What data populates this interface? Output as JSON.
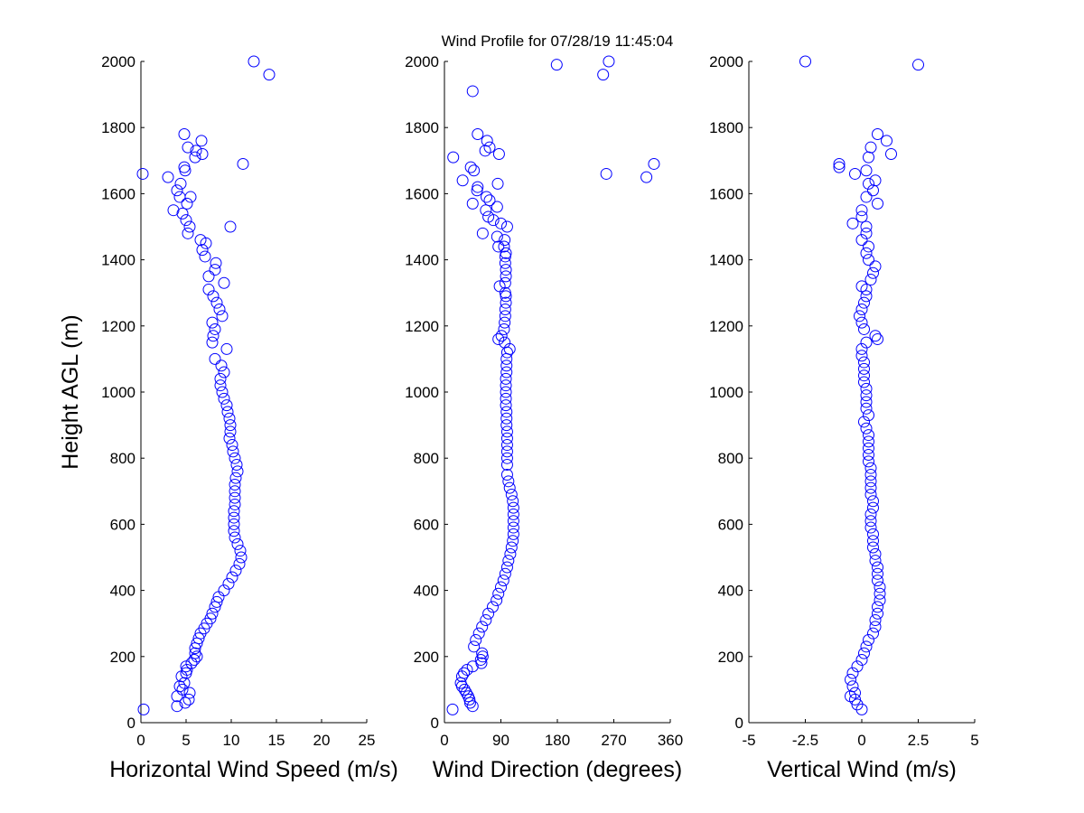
{
  "figure": {
    "title": "Wind Profile for  07/28/19 11:45:04",
    "marker_color": "#0000ff"
  },
  "chart_data": [
    {
      "type": "scatter",
      "xlabel": "Horizontal Wind Speed (m/s)",
      "ylabel": "Height AGL (m)",
      "xlim": [
        0,
        25
      ],
      "ylim": [
        0,
        2000
      ],
      "xticks": [
        "0",
        "5",
        "10",
        "15",
        "20",
        "25"
      ],
      "yticks": [
        "0",
        "200",
        "400",
        "600",
        "800",
        "1000",
        "1200",
        "1400",
        "1600",
        "1800",
        "2000"
      ],
      "grid": false,
      "points": [
        [
          0.3,
          40
        ],
        [
          4.0,
          50
        ],
        [
          4.9,
          60
        ],
        [
          5.3,
          70
        ],
        [
          4.0,
          80
        ],
        [
          5.4,
          90
        ],
        [
          4.6,
          100
        ],
        [
          4.3,
          110
        ],
        [
          4.8,
          120
        ],
        [
          4.5,
          140
        ],
        [
          5.0,
          150
        ],
        [
          5.1,
          160
        ],
        [
          5.0,
          170
        ],
        [
          5.6,
          180
        ],
        [
          5.9,
          190
        ],
        [
          6.2,
          200
        ],
        [
          6.0,
          210
        ],
        [
          6.0,
          225
        ],
        [
          6.2,
          240
        ],
        [
          6.4,
          255
        ],
        [
          6.6,
          270
        ],
        [
          7.0,
          285
        ],
        [
          7.3,
          300
        ],
        [
          7.7,
          315
        ],
        [
          7.9,
          330
        ],
        [
          8.2,
          350
        ],
        [
          8.4,
          365
        ],
        [
          8.6,
          380
        ],
        [
          9.2,
          400
        ],
        [
          9.7,
          420
        ],
        [
          10.1,
          440
        ],
        [
          10.5,
          460
        ],
        [
          10.9,
          480
        ],
        [
          11.1,
          500
        ],
        [
          11.0,
          520
        ],
        [
          10.7,
          540
        ],
        [
          10.4,
          560
        ],
        [
          10.3,
          580
        ],
        [
          10.3,
          600
        ],
        [
          10.3,
          620
        ],
        [
          10.3,
          640
        ],
        [
          10.4,
          660
        ],
        [
          10.4,
          680
        ],
        [
          10.4,
          700
        ],
        [
          10.4,
          720
        ],
        [
          10.5,
          740
        ],
        [
          10.7,
          760
        ],
        [
          10.6,
          780
        ],
        [
          10.4,
          800
        ],
        [
          10.2,
          820
        ],
        [
          10.1,
          840
        ],
        [
          9.8,
          860
        ],
        [
          9.9,
          880
        ],
        [
          9.9,
          900
        ],
        [
          9.8,
          920
        ],
        [
          9.6,
          940
        ],
        [
          9.5,
          960
        ],
        [
          9.2,
          980
        ],
        [
          9.0,
          1000
        ],
        [
          8.8,
          1020
        ],
        [
          8.8,
          1040
        ],
        [
          9.2,
          1060
        ],
        [
          8.9,
          1080
        ],
        [
          8.2,
          1100
        ],
        [
          9.5,
          1130
        ],
        [
          7.9,
          1150
        ],
        [
          8.0,
          1170
        ],
        [
          8.2,
          1190
        ],
        [
          7.9,
          1210
        ],
        [
          9.0,
          1230
        ],
        [
          8.7,
          1250
        ],
        [
          8.4,
          1270
        ],
        [
          8.0,
          1290
        ],
        [
          7.5,
          1310
        ],
        [
          9.2,
          1330
        ],
        [
          7.5,
          1350
        ],
        [
          8.2,
          1370
        ],
        [
          8.3,
          1390
        ],
        [
          7.1,
          1410
        ],
        [
          6.8,
          1430
        ],
        [
          7.2,
          1450
        ],
        [
          6.6,
          1460
        ],
        [
          5.2,
          1480
        ],
        [
          5.4,
          1500
        ],
        [
          9.9,
          1500
        ],
        [
          5.0,
          1520
        ],
        [
          4.6,
          1540
        ],
        [
          3.6,
          1550
        ],
        [
          5.1,
          1570
        ],
        [
          4.3,
          1590
        ],
        [
          5.5,
          1590
        ],
        [
          4.0,
          1610
        ],
        [
          4.4,
          1630
        ],
        [
          3.0,
          1650
        ],
        [
          0.2,
          1660
        ],
        [
          4.9,
          1670
        ],
        [
          4.8,
          1680
        ],
        [
          11.3,
          1690
        ],
        [
          6.0,
          1710
        ],
        [
          6.8,
          1720
        ],
        [
          6.1,
          1730
        ],
        [
          5.2,
          1740
        ],
        [
          6.7,
          1760
        ],
        [
          4.8,
          1780
        ],
        [
          14.2,
          1960
        ],
        [
          12.5,
          2000
        ]
      ]
    },
    {
      "type": "scatter",
      "xlabel": "Wind Direction (degrees)",
      "ylabel": "",
      "xlim": [
        0,
        360
      ],
      "ylim": [
        0,
        2000
      ],
      "xticks": [
        "0",
        "90",
        "180",
        "270",
        "360"
      ],
      "yticks": [
        "0",
        "200",
        "400",
        "600",
        "800",
        "1000",
        "1200",
        "1400",
        "1600",
        "1800",
        "2000"
      ],
      "grid": false,
      "points": [
        [
          13,
          40
        ],
        [
          45,
          50
        ],
        [
          41,
          60
        ],
        [
          40,
          70
        ],
        [
          38,
          80
        ],
        [
          35,
          90
        ],
        [
          32,
          100
        ],
        [
          28,
          110
        ],
        [
          26,
          120
        ],
        [
          28,
          140
        ],
        [
          31,
          150
        ],
        [
          36,
          160
        ],
        [
          45,
          170
        ],
        [
          59,
          180
        ],
        [
          58,
          190
        ],
        [
          61,
          200
        ],
        [
          60,
          210
        ],
        [
          47,
          230
        ],
        [
          50,
          250
        ],
        [
          55,
          270
        ],
        [
          60,
          290
        ],
        [
          66,
          310
        ],
        [
          70,
          330
        ],
        [
          77,
          350
        ],
        [
          83,
          370
        ],
        [
          86,
          390
        ],
        [
          90,
          410
        ],
        [
          94,
          430
        ],
        [
          97,
          450
        ],
        [
          100,
          470
        ],
        [
          102,
          490
        ],
        [
          105,
          510
        ],
        [
          107,
          530
        ],
        [
          109,
          550
        ],
        [
          110,
          570
        ],
        [
          110,
          590
        ],
        [
          110,
          610
        ],
        [
          110,
          630
        ],
        [
          110,
          650
        ],
        [
          109,
          670
        ],
        [
          107,
          690
        ],
        [
          104,
          710
        ],
        [
          102,
          730
        ],
        [
          100,
          750
        ],
        [
          100,
          780
        ],
        [
          100,
          800
        ],
        [
          100,
          820
        ],
        [
          100,
          840
        ],
        [
          100,
          860
        ],
        [
          100,
          880
        ],
        [
          99,
          900
        ],
        [
          99,
          920
        ],
        [
          99,
          940
        ],
        [
          98,
          960
        ],
        [
          98,
          980
        ],
        [
          98,
          1000
        ],
        [
          98,
          1020
        ],
        [
          98,
          1040
        ],
        [
          99,
          1060
        ],
        [
          99,
          1080
        ],
        [
          99,
          1100
        ],
        [
          100,
          1120
        ],
        [
          104,
          1130
        ],
        [
          96,
          1150
        ],
        [
          86,
          1160
        ],
        [
          91,
          1170
        ],
        [
          95,
          1190
        ],
        [
          96,
          1210
        ],
        [
          97,
          1230
        ],
        [
          97,
          1250
        ],
        [
          98,
          1270
        ],
        [
          98,
          1290
        ],
        [
          97,
          1300
        ],
        [
          88,
          1320
        ],
        [
          97,
          1330
        ],
        [
          98,
          1350
        ],
        [
          98,
          1370
        ],
        [
          97,
          1390
        ],
        [
          97,
          1410
        ],
        [
          98,
          1420
        ],
        [
          95,
          1440
        ],
        [
          86,
          1440
        ],
        [
          96,
          1460
        ],
        [
          84,
          1470
        ],
        [
          100,
          1500
        ],
        [
          61,
          1480
        ],
        [
          90,
          1510
        ],
        [
          78,
          1520
        ],
        [
          70,
          1530
        ],
        [
          66,
          1550
        ],
        [
          84,
          1560
        ],
        [
          45,
          1570
        ],
        [
          72,
          1580
        ],
        [
          67,
          1590
        ],
        [
          52,
          1610
        ],
        [
          53,
          1620
        ],
        [
          85,
          1630
        ],
        [
          29,
          1640
        ],
        [
          47,
          1670
        ],
        [
          42,
          1680
        ],
        [
          72,
          1740
        ],
        [
          65,
          1730
        ],
        [
          14,
          1710
        ],
        [
          87,
          1720
        ],
        [
          68,
          1760
        ],
        [
          53,
          1780
        ],
        [
          45,
          1910
        ],
        [
          258,
          1660
        ],
        [
          322,
          1650
        ],
        [
          334,
          1690
        ],
        [
          179,
          1990
        ],
        [
          253,
          1960
        ],
        [
          262,
          2000
        ]
      ]
    },
    {
      "type": "scatter",
      "xlabel": "Vertical Wind (m/s)",
      "ylabel": "",
      "xlim": [
        -5,
        5
      ],
      "xticks": [
        "-5",
        "-2.5",
        "0",
        "2.5",
        "5"
      ],
      "ylim": [
        0,
        2000
      ],
      "yticks": [
        "0",
        "200",
        "400",
        "600",
        "800",
        "1000",
        "1200",
        "1400",
        "1600",
        "1800",
        "2000"
      ],
      "grid": false,
      "points": [
        [
          0.0,
          40
        ],
        [
          -0.2,
          55
        ],
        [
          -0.3,
          70
        ],
        [
          -0.5,
          80
        ],
        [
          -0.3,
          90
        ],
        [
          -0.4,
          110
        ],
        [
          -0.5,
          130
        ],
        [
          -0.4,
          150
        ],
        [
          -0.2,
          170
        ],
        [
          0.0,
          190
        ],
        [
          0.1,
          210
        ],
        [
          0.2,
          230
        ],
        [
          0.3,
          250
        ],
        [
          0.5,
          270
        ],
        [
          0.6,
          290
        ],
        [
          0.6,
          310
        ],
        [
          0.7,
          330
        ],
        [
          0.7,
          350
        ],
        [
          0.8,
          370
        ],
        [
          0.8,
          390
        ],
        [
          0.8,
          410
        ],
        [
          0.7,
          430
        ],
        [
          0.7,
          450
        ],
        [
          0.7,
          470
        ],
        [
          0.6,
          490
        ],
        [
          0.6,
          510
        ],
        [
          0.5,
          530
        ],
        [
          0.5,
          550
        ],
        [
          0.5,
          570
        ],
        [
          0.4,
          590
        ],
        [
          0.4,
          610
        ],
        [
          0.4,
          630
        ],
        [
          0.5,
          650
        ],
        [
          0.5,
          670
        ],
        [
          0.4,
          690
        ],
        [
          0.4,
          710
        ],
        [
          0.4,
          730
        ],
        [
          0.4,
          750
        ],
        [
          0.4,
          770
        ],
        [
          0.3,
          790
        ],
        [
          0.3,
          810
        ],
        [
          0.3,
          830
        ],
        [
          0.3,
          850
        ],
        [
          0.3,
          870
        ],
        [
          0.2,
          890
        ],
        [
          0.1,
          910
        ],
        [
          0.3,
          930
        ],
        [
          0.2,
          950
        ],
        [
          0.2,
          970
        ],
        [
          0.2,
          990
        ],
        [
          0.2,
          1010
        ],
        [
          0.1,
          1030
        ],
        [
          0.1,
          1050
        ],
        [
          0.1,
          1070
        ],
        [
          0.1,
          1090
        ],
        [
          0.0,
          1110
        ],
        [
          0.0,
          1130
        ],
        [
          0.2,
          1150
        ],
        [
          0.7,
          1160
        ],
        [
          0.6,
          1170
        ],
        [
          0.1,
          1190
        ],
        [
          0.0,
          1210
        ],
        [
          -0.1,
          1230
        ],
        [
          0.0,
          1250
        ],
        [
          0.1,
          1270
        ],
        [
          0.2,
          1290
        ],
        [
          0.2,
          1310
        ],
        [
          0.0,
          1320
        ],
        [
          0.4,
          1340
        ],
        [
          0.5,
          1360
        ],
        [
          0.6,
          1380
        ],
        [
          0.3,
          1400
        ],
        [
          0.2,
          1420
        ],
        [
          0.3,
          1440
        ],
        [
          0.0,
          1460
        ],
        [
          0.2,
          1480
        ],
        [
          0.2,
          1500
        ],
        [
          -0.4,
          1510
        ],
        [
          0.0,
          1530
        ],
        [
          0.0,
          1550
        ],
        [
          0.7,
          1570
        ],
        [
          0.2,
          1590
        ],
        [
          0.5,
          1610
        ],
        [
          0.3,
          1630
        ],
        [
          0.6,
          1640
        ],
        [
          -0.3,
          1660
        ],
        [
          0.2,
          1670
        ],
        [
          -1.0,
          1680
        ],
        [
          -1.0,
          1690
        ],
        [
          0.3,
          1710
        ],
        [
          1.3,
          1720
        ],
        [
          0.4,
          1740
        ],
        [
          1.1,
          1760
        ],
        [
          0.7,
          1780
        ],
        [
          -2.5,
          2000
        ],
        [
          2.5,
          1990
        ]
      ]
    }
  ]
}
